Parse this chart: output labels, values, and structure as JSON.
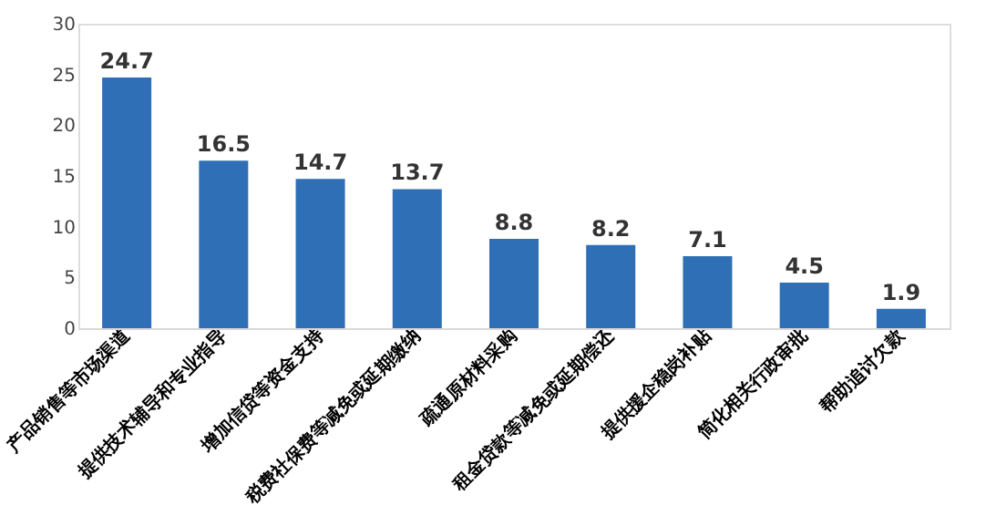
{
  "chart_data": {
    "type": "bar",
    "categories": [
      "产品销售等市场渠道",
      "提供技术辅导和专业指导",
      "增加信贷等资金支持",
      "税费社保费等减免或延期缴纳",
      "疏通原材料采购",
      "租金贷款等减免或延期偿还",
      "提供援企稳岗补贴",
      "简化相关行政审批",
      "帮助追讨欠款"
    ],
    "values": [
      24.7,
      16.5,
      14.7,
      13.7,
      8.8,
      8.2,
      7.1,
      4.5,
      1.9
    ],
    "color": "#2e6fb5",
    "ylim": [
      0,
      30
    ],
    "yticks": [
      0,
      5,
      10,
      15,
      20,
      25,
      30
    ],
    "grid": false,
    "data_labels": true
  }
}
